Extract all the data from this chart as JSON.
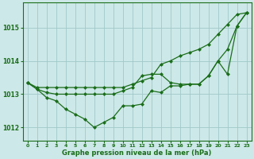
{
  "hours": [
    0,
    1,
    2,
    3,
    4,
    5,
    6,
    7,
    8,
    9,
    10,
    11,
    12,
    13,
    14,
    15,
    16,
    17,
    18,
    19,
    20,
    21,
    22,
    23
  ],
  "line_bottom": [
    1013.35,
    1013.15,
    1012.9,
    1012.8,
    1012.55,
    1012.4,
    1012.25,
    1012.0,
    1012.15,
    1012.3,
    1012.65,
    1012.65,
    1012.7,
    1013.1,
    1013.05,
    1013.25,
    1013.25,
    1013.3,
    1013.3,
    1013.55,
    1014.0,
    1013.6,
    1015.05,
    1015.45
  ],
  "line_mid": [
    1013.35,
    1013.15,
    1013.05,
    1013.0,
    1013.0,
    1013.0,
    1013.0,
    1013.0,
    1013.0,
    1013.0,
    1013.1,
    1013.2,
    1013.55,
    1013.6,
    1013.6,
    1013.35,
    1013.3,
    1013.3,
    1013.3,
    1013.55,
    1014.0,
    1014.35,
    1015.05,
    1015.45
  ],
  "line_top": [
    1013.35,
    1013.2,
    1013.2,
    1013.2,
    1013.2,
    1013.2,
    1013.2,
    1013.2,
    1013.2,
    1013.2,
    1013.2,
    1013.3,
    1013.4,
    1013.5,
    1013.9,
    1014.0,
    1014.15,
    1014.25,
    1014.35,
    1014.5,
    1014.8,
    1015.1,
    1015.4,
    1015.45
  ],
  "line_color": "#1a6e1a",
  "bg_color": "#cde8e8",
  "grid_color": "#a0c8c8",
  "xlabel": "Graphe pression niveau de la mer (hPa)",
  "ylim": [
    1011.6,
    1015.75
  ],
  "yticks": [
    1012,
    1013,
    1014,
    1015
  ],
  "xticks": [
    0,
    1,
    2,
    3,
    4,
    5,
    6,
    7,
    8,
    9,
    10,
    11,
    12,
    13,
    14,
    15,
    16,
    17,
    18,
    19,
    20,
    21,
    22,
    23
  ]
}
